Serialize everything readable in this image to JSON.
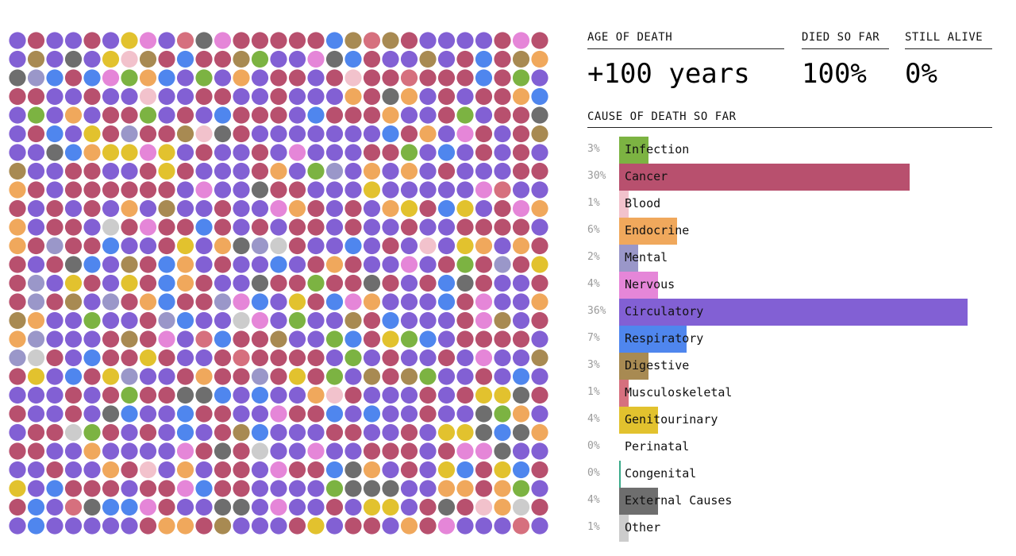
{
  "header": {
    "age_label": "AGE OF DEATH",
    "died_label": "DIED SO FAR",
    "alive_label": "STILL ALIVE",
    "age_value": "+100 years",
    "died_value": "100%",
    "alive_value": "0%",
    "cause_label": "CAUSE OF DEATH SO FAR"
  },
  "chart_data": {
    "type": "bar",
    "title": "CAUSE OF DEATH SO FAR",
    "orientation": "horizontal",
    "value_unit": "percent",
    "categories": [
      "Infection",
      "Cancer",
      "Blood",
      "Endocrine",
      "Mental",
      "Nervous",
      "Circulatory",
      "Respiratory",
      "Digestive",
      "Musculoskeletal",
      "Genitourinary",
      "Perinatal",
      "Congenital",
      "External Causes",
      "Other"
    ],
    "values": [
      3,
      30,
      1,
      6,
      2,
      4,
      36,
      7,
      3,
      1,
      4,
      0,
      0,
      4,
      1
    ],
    "labels": [
      "3%",
      "30%",
      "1%",
      "6%",
      "2%",
      "4%",
      "36%",
      "7%",
      "3%",
      "1%",
      "4%",
      "0%",
      "0%",
      "4%",
      "1%"
    ],
    "colors": [
      "#7cb342",
      "#b8506e",
      "#f2c2cc",
      "#f0a85c",
      "#9a97c9",
      "#e586d8",
      "#8260d4",
      "#4f86ee",
      "#a88a52",
      "#d6707e",
      "#e2c22e",
      "#f5f5f5",
      "#3aaa8a",
      "#6e6e6e",
      "#cccccc"
    ],
    "grid": {
      "rows": 27,
      "cols": 29,
      "dot_count": 783
    }
  }
}
